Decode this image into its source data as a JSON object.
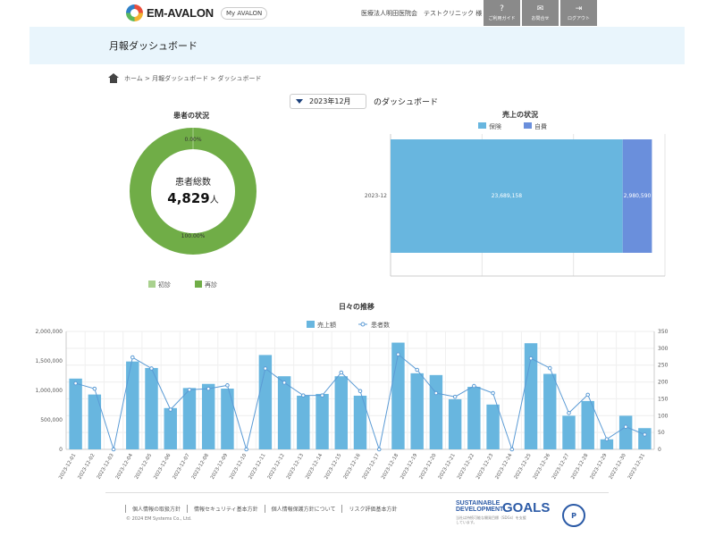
{
  "header": {
    "logo_text": "EM-AVALON",
    "my_avalon": "My AVALON",
    "clinic": "医療法人明田医院会　テストクリニック 様",
    "buttons": [
      {
        "label": "ご利用ガイド",
        "icon": "question-icon"
      },
      {
        "label": "お問合せ",
        "icon": "mail-icon"
      },
      {
        "label": "ログアウト",
        "icon": "logout-icon"
      }
    ]
  },
  "page": {
    "title": "月報ダッシュボード",
    "breadcrumb": [
      "ホーム",
      "月報ダッシュボード",
      "ダッシュボード"
    ],
    "month_select": "2023年12月",
    "month_suffix": "のダッシュボード"
  },
  "patient_chart": {
    "title": "患者の状況",
    "center_label": "患者総数",
    "center_value": "4,829",
    "center_unit": "人",
    "legend": [
      "初診",
      "再診"
    ],
    "colors": [
      "#a9d18e",
      "#70ad47"
    ]
  },
  "sales_chart": {
    "title": "売上の状況",
    "legend": [
      "保険",
      "自費"
    ],
    "colors": [
      "#68b6df",
      "#6a8fdc"
    ]
  },
  "daily_chart": {
    "title": "日々の推移",
    "legend": [
      "売上額",
      "患者数"
    ],
    "colors": {
      "bar": "#68b6df",
      "line": "#5b9bd5"
    }
  },
  "chart_data": [
    {
      "type": "pie",
      "title": "患者の状況",
      "labels": [
        "初診",
        "再診"
      ],
      "values": [
        0,
        4829
      ],
      "value_labels": [
        "0.00%",
        "100.00%"
      ]
    },
    {
      "type": "bar",
      "title": "売上の状況",
      "orientation": "horizontal",
      "stacked": true,
      "categories": [
        "2023-12"
      ],
      "series": [
        {
          "name": "保険",
          "values": [
            23689158
          ],
          "label": "23,689,158"
        },
        {
          "name": "自費",
          "values": [
            2980590
          ],
          "label": "2,980,590"
        }
      ],
      "xlim": [
        0,
        28000000
      ]
    },
    {
      "type": "bar",
      "title": "日々の推移",
      "categories": [
        "2023-12-01",
        "2023-12-02",
        "2023-12-03",
        "2023-12-04",
        "2023-12-05",
        "2023-12-06",
        "2023-12-07",
        "2023-12-08",
        "2023-12-09",
        "2023-12-10",
        "2023-12-11",
        "2023-12-12",
        "2023-12-13",
        "2023-12-14",
        "2023-12-15",
        "2023-12-16",
        "2023-12-17",
        "2023-12-18",
        "2023-12-19",
        "2023-12-20",
        "2023-12-21",
        "2023-12-22",
        "2023-12-23",
        "2023-12-24",
        "2023-12-25",
        "2023-12-26",
        "2023-12-27",
        "2023-12-28",
        "2023-12-29",
        "2023-12-30",
        "2023-12-31"
      ],
      "series": [
        {
          "name": "売上額",
          "type": "bar",
          "axis": "left",
          "values": [
            1200000,
            930000,
            0,
            1490000,
            1380000,
            700000,
            1040000,
            1110000,
            1030000,
            0,
            1600000,
            1240000,
            910000,
            940000,
            1240000,
            910000,
            0,
            1810000,
            1290000,
            1260000,
            850000,
            1060000,
            760000,
            0,
            1800000,
            1280000,
            570000,
            820000,
            170000,
            570000,
            360000
          ]
        },
        {
          "name": "患者数",
          "type": "line",
          "axis": "right",
          "values": [
            196,
            180,
            0,
            273,
            240,
            118,
            177,
            180,
            190,
            0,
            240,
            198,
            160,
            160,
            228,
            173,
            0,
            282,
            236,
            167,
            156,
            188,
            167,
            0,
            270,
            241,
            108,
            162,
            30,
            67,
            44
          ]
        }
      ],
      "y_left_ticks": [
        "0",
        "500,000",
        "1,000,000",
        "1,500,000",
        "2,000,000"
      ],
      "y_left_lim": [
        0,
        2000000
      ],
      "y_right_ticks": [
        "0",
        "50",
        "100",
        "150",
        "200",
        "250",
        "300",
        "350"
      ],
      "y_right_lim": [
        0,
        350
      ],
      "grid": true,
      "legend_position": "top"
    }
  ],
  "footer": {
    "links": [
      "個人情報の取扱方針",
      "情報セキュリティ基本方針",
      "個人情報保護方針について",
      "リスク評価基本方針"
    ],
    "copyright": "© 2024 EM Systems Co., Ltd.",
    "sdgs_title_1": "SUSTAINABLE",
    "sdgs_title_2": "DEVELOPMENT",
    "sdgs_goals": "GOALS",
    "sdgs_sub": "当社は持続可能な開発目標（SDGs）を支援しています。",
    "pmark": "P"
  }
}
